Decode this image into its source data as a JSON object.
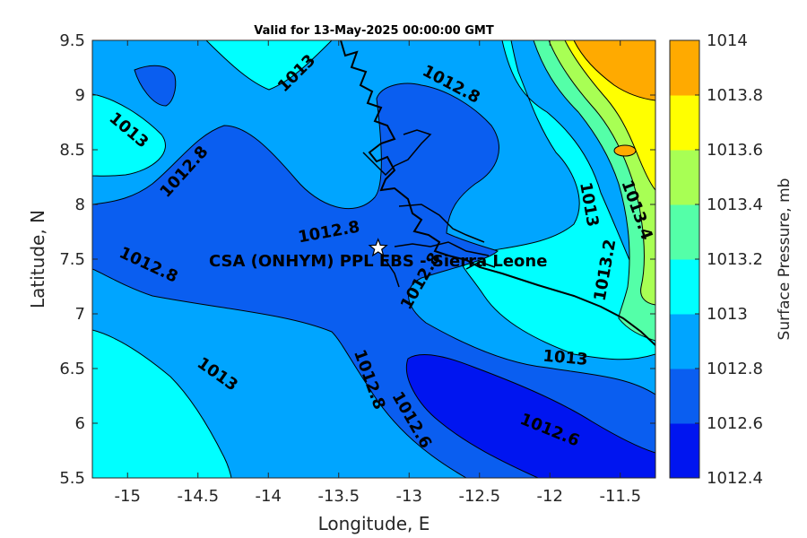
{
  "chart_data": {
    "type": "contourf",
    "title": "Valid for 13-May-2025 00:00:00 GMT",
    "xlabel": "Longitude, E",
    "ylabel": "Latitude, N",
    "xlim": [
      -15.25,
      -11.25
    ],
    "ylim": [
      5.5,
      9.5
    ],
    "xticks": [
      "-15",
      "-14.5",
      "-14",
      "-13.5",
      "-13",
      "-12.5",
      "-12",
      "-11.5"
    ],
    "yticks": [
      "5.5",
      "6",
      "6.5",
      "7",
      "7.5",
      "8",
      "8.5",
      "9",
      "9.5"
    ],
    "colorbar": {
      "label": "Surface Pressure, mb",
      "levels": [
        1012.4,
        1012.6,
        1012.8,
        1013,
        1013.2,
        1013.4,
        1013.6,
        1013.8,
        1014
      ],
      "tick_labels": [
        "1012.4",
        "1012.6",
        "1012.8",
        "1013",
        "1013.2",
        "1013.4",
        "1013.6",
        "1013.8",
        "1014"
      ],
      "colors": [
        "#0015f0",
        "#0a5ef0",
        "#00a5ff",
        "#00ffff",
        "#54ffa8",
        "#a8ff54",
        "#ffff00",
        "#ffaa00",
        "#ff5500"
      ]
    },
    "contour_labels": [
      {
        "text": "1013",
        "lon": -14.99,
        "lat": 8.68,
        "angle": 40
      },
      {
        "text": "1013",
        "lon": -13.8,
        "lat": 9.2,
        "angle": -45
      },
      {
        "text": "1012.8",
        "lon": -14.6,
        "lat": 8.3,
        "angle": -48
      },
      {
        "text": "1012.8",
        "lon": -12.7,
        "lat": 9.1,
        "angle": 28
      },
      {
        "text": "1012.8",
        "lon": -13.57,
        "lat": 7.75,
        "angle": -10
      },
      {
        "text": "1012.8",
        "lon": -14.85,
        "lat": 7.45,
        "angle": 25
      },
      {
        "text": "1012.8",
        "lon": -12.92,
        "lat": 7.3,
        "angle": -60
      },
      {
        "text": "1012.8",
        "lon": -13.28,
        "lat": 6.4,
        "angle": 70
      },
      {
        "text": "1013",
        "lon": -14.36,
        "lat": 6.45,
        "angle": 35
      },
      {
        "text": "1013",
        "lon": -11.89,
        "lat": 6.6,
        "angle": 5
      },
      {
        "text": "1012.6",
        "lon": -12.98,
        "lat": 6.03,
        "angle": 60
      },
      {
        "text": "1012.6",
        "lon": -12.0,
        "lat": 5.94,
        "angle": 22
      },
      {
        "text": "1013",
        "lon": -11.72,
        "lat": 8.0,
        "angle": 80
      },
      {
        "text": "1013.2",
        "lon": -11.61,
        "lat": 7.4,
        "angle": -80
      },
      {
        "text": "1013.4",
        "lon": -11.38,
        "lat": 7.95,
        "angle": 70
      }
    ],
    "site": {
      "label": "CSA (ONHYM) PPL EBS - Sierra Leone",
      "lon": -13.22,
      "lat": 7.6,
      "marker": "star"
    }
  }
}
